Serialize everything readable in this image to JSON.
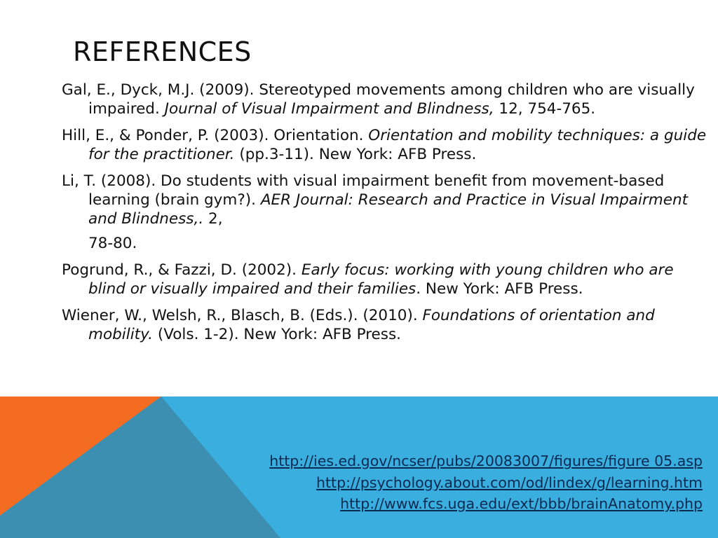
{
  "slide": {
    "title": "References",
    "references": [
      {
        "lead": "Gal, E., Dyck, M.J. (2009). Stereotyped movements among children who are visually impaired. ",
        "italic": "Journal of Visual Impairment and Blindness,",
        "tail": " 12, 754-765."
      },
      {
        "lead": "Hill, E., & Ponder, P. (2003). Orientation. ",
        "italic": "Orientation and mobility techniques: a guide for the practitioner.",
        "tail": " (pp.3-11). New York: AFB Press."
      },
      {
        "lead": "Li, T. (2008). Do students with visual impairment benefit from movement-based learning (brain gym?). ",
        "italic": "AER Journal: Research and Practice in Visual Impairment and Blindness,.",
        "tail": " 2,",
        "continuation": "78-80."
      },
      {
        "lead": "Pogrund, R., & Fazzi, D. (2002). ",
        "italic": "Early focus: working with young children who are blind or visually impaired and their families",
        "tail": ". New York: AFB Press."
      },
      {
        "lead": "Wiener, W., Welsh, R., Blasch, B. (Eds.). (2010). ",
        "italic": "Foundations of orientation and mobility.",
        "tail": " (Vols. 1-2). New York: AFB Press."
      }
    ],
    "links": [
      "http://ies.ed.gov/ncser/pubs/20083007/figures/figure 05.asp",
      "http://psychology.about.com/od/lindex/g/learning.htm",
      "http://www.fcs.uga.edu/ext/bbb/brainAnatomy.php"
    ]
  },
  "colors": {
    "background": "#ffffff",
    "text": "#111111",
    "band_blue": "#3aaede",
    "band_orange": "#f36c21",
    "band_overlap": "#3c8fb0",
    "link": "#0b2a52"
  }
}
